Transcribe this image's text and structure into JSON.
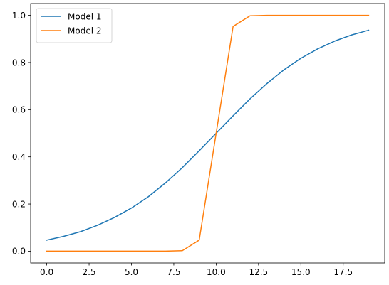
{
  "chart_data": {
    "type": "line",
    "title": "",
    "xlabel": "",
    "ylabel": "",
    "xlim": [
      -0.95,
      19.95
    ],
    "ylim": [
      -0.05,
      1.05
    ],
    "grid": false,
    "legend_position": "top-left",
    "x_ticks": [
      0.0,
      2.5,
      5.0,
      7.5,
      10.0,
      12.5,
      15.0,
      17.5
    ],
    "x_tick_labels": [
      "0.0",
      "2.5",
      "5.0",
      "7.5",
      "10.0",
      "12.5",
      "15.0",
      "17.5"
    ],
    "y_ticks": [
      0.0,
      0.2,
      0.4,
      0.6,
      0.8,
      1.0
    ],
    "y_tick_labels": [
      "0.0",
      "0.2",
      "0.4",
      "0.6",
      "0.8",
      "1.0"
    ],
    "x": [
      0,
      1,
      2,
      3,
      4,
      5,
      6,
      7,
      8,
      9,
      10,
      11,
      12,
      13,
      14,
      15,
      16,
      17,
      18,
      19
    ],
    "series": [
      {
        "name": "Model 1",
        "color": "#1f77b4",
        "values": [
          0.047,
          0.063,
          0.083,
          0.11,
          0.143,
          0.183,
          0.231,
          0.289,
          0.354,
          0.426,
          0.5,
          0.574,
          0.646,
          0.711,
          0.769,
          0.818,
          0.858,
          0.891,
          0.917,
          0.937
        ]
      },
      {
        "name": "Model 2",
        "color": "#ff7f0e",
        "values": [
          0.0,
          0.0,
          0.0,
          0.0,
          0.0,
          0.0,
          0.0,
          0.0,
          0.002,
          0.047,
          0.5,
          0.953,
          0.998,
          1.0,
          1.0,
          1.0,
          1.0,
          1.0,
          1.0,
          1.0
        ]
      }
    ]
  }
}
